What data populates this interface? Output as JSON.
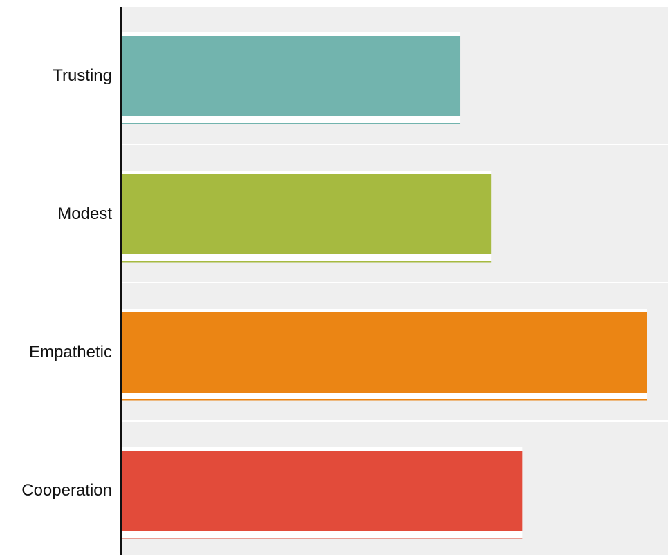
{
  "chart_data": {
    "type": "bar",
    "orientation": "horizontal",
    "categories": [
      "Trusting",
      "Modest",
      "Empathetic",
      "Cooperation"
    ],
    "values": [
      65,
      71,
      101,
      77
    ],
    "xlim": [
      0,
      105
    ],
    "grid": false,
    "legend": "none",
    "colors": [
      "#72b4ae",
      "#a6ba40",
      "#eb8514",
      "#e24b3a"
    ],
    "band_color": "#efefef",
    "axis_color": "#111111"
  }
}
